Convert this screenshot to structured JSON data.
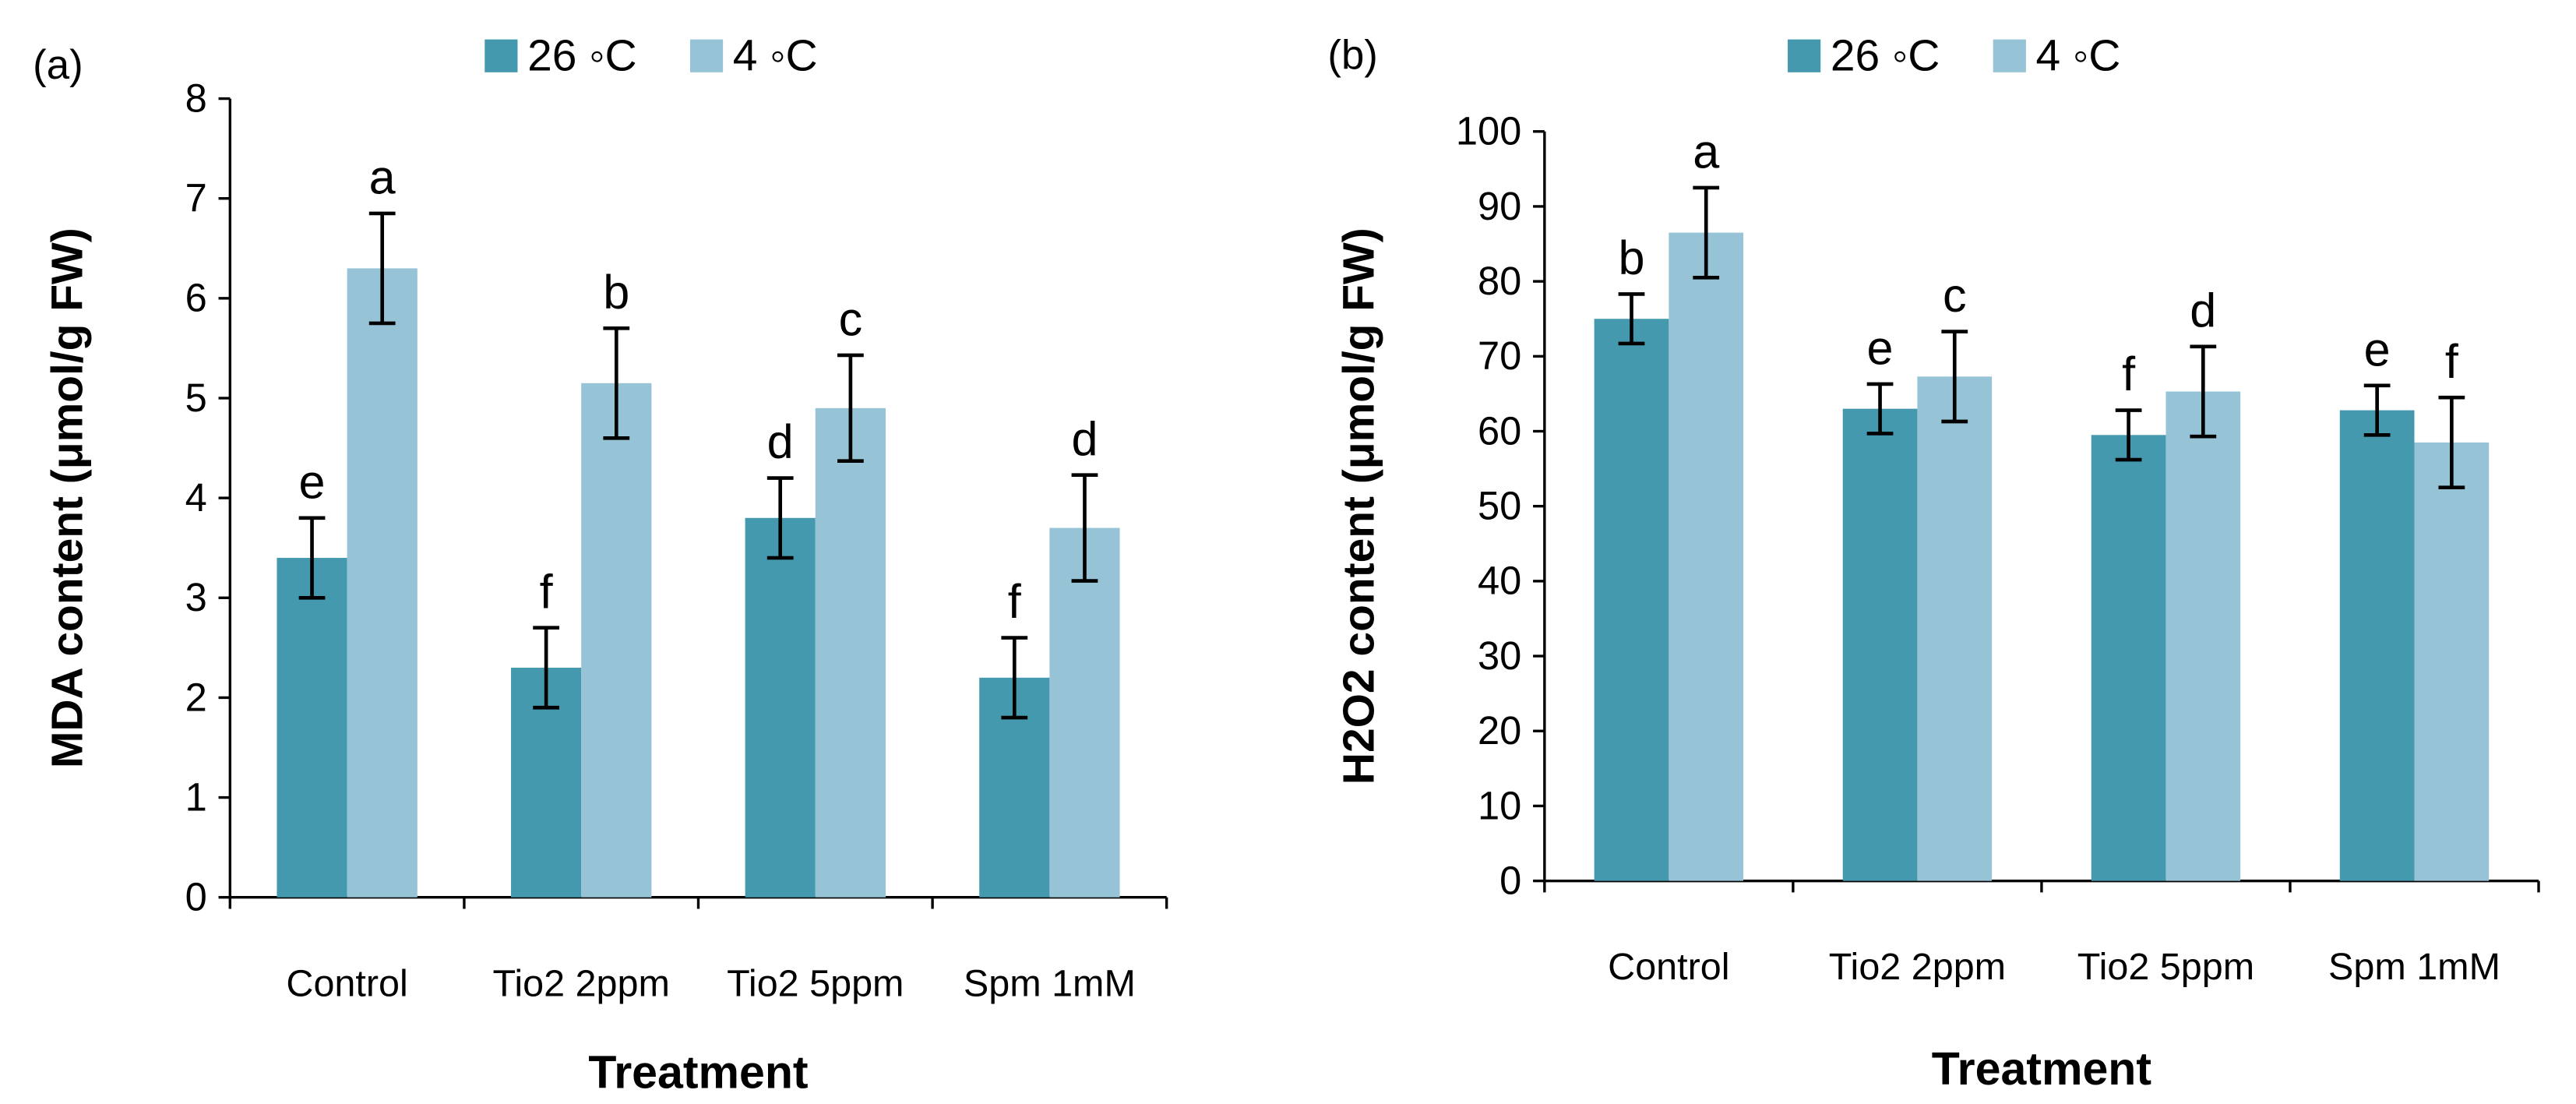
{
  "colors": {
    "s26": "#4599ae",
    "s4": "#96c3d5",
    "axis": "#000000",
    "error": "#000000"
  },
  "chart_data": [
    {
      "type": "bar",
      "panel_label": "(a)",
      "categories": [
        "Control",
        "Tio2 2ppm",
        "Tio2 5ppm",
        "Spm 1mM"
      ],
      "series": [
        {
          "name": "26 ◦C",
          "values": [
            3.4,
            2.3,
            3.8,
            2.2
          ],
          "errors": [
            0.4,
            0.4,
            0.4,
            0.4
          ],
          "labels": [
            "e",
            "f",
            "d",
            "f"
          ]
        },
        {
          "name": "4 ◦C",
          "values": [
            6.3,
            5.15,
            4.9,
            3.7
          ],
          "errors": [
            0.55,
            0.55,
            0.53,
            0.53
          ],
          "labels": [
            "a",
            "b",
            "c",
            "d"
          ]
        }
      ],
      "xlabel": "Treatment",
      "ylabel": "MDA content (μmol/g FW)",
      "ylim": [
        0,
        8
      ],
      "yticks": [
        "0",
        "1",
        "2",
        "3",
        "4",
        "5",
        "6",
        "7",
        "8"
      ],
      "legend": "top-center",
      "grid": false
    },
    {
      "type": "bar",
      "panel_label": "(b)",
      "categories": [
        "Control",
        "Tio2 2ppm",
        "Tio2 5ppm",
        "Spm 1mM"
      ],
      "series": [
        {
          "name": "26 ◦C",
          "values": [
            75,
            63,
            59.5,
            62.8
          ],
          "errors": [
            3.3,
            3.3,
            3.3,
            3.3
          ],
          "labels": [
            "b",
            "e",
            "f",
            "e"
          ]
        },
        {
          "name": "4 ◦C",
          "values": [
            86.5,
            67.3,
            65.3,
            58.5
          ],
          "errors": [
            6,
            6,
            6,
            6
          ],
          "labels": [
            "a",
            "c",
            "d",
            "f"
          ]
        }
      ],
      "xlabel": "Treatment",
      "ylabel": "H2O2  content (μmol/g FW)",
      "ylim": [
        0,
        100
      ],
      "yticks": [
        "0",
        "10",
        "20",
        "30",
        "40",
        "50",
        "60",
        "70",
        "80",
        "90",
        "100"
      ],
      "legend": "top-center",
      "grid": false
    }
  ]
}
